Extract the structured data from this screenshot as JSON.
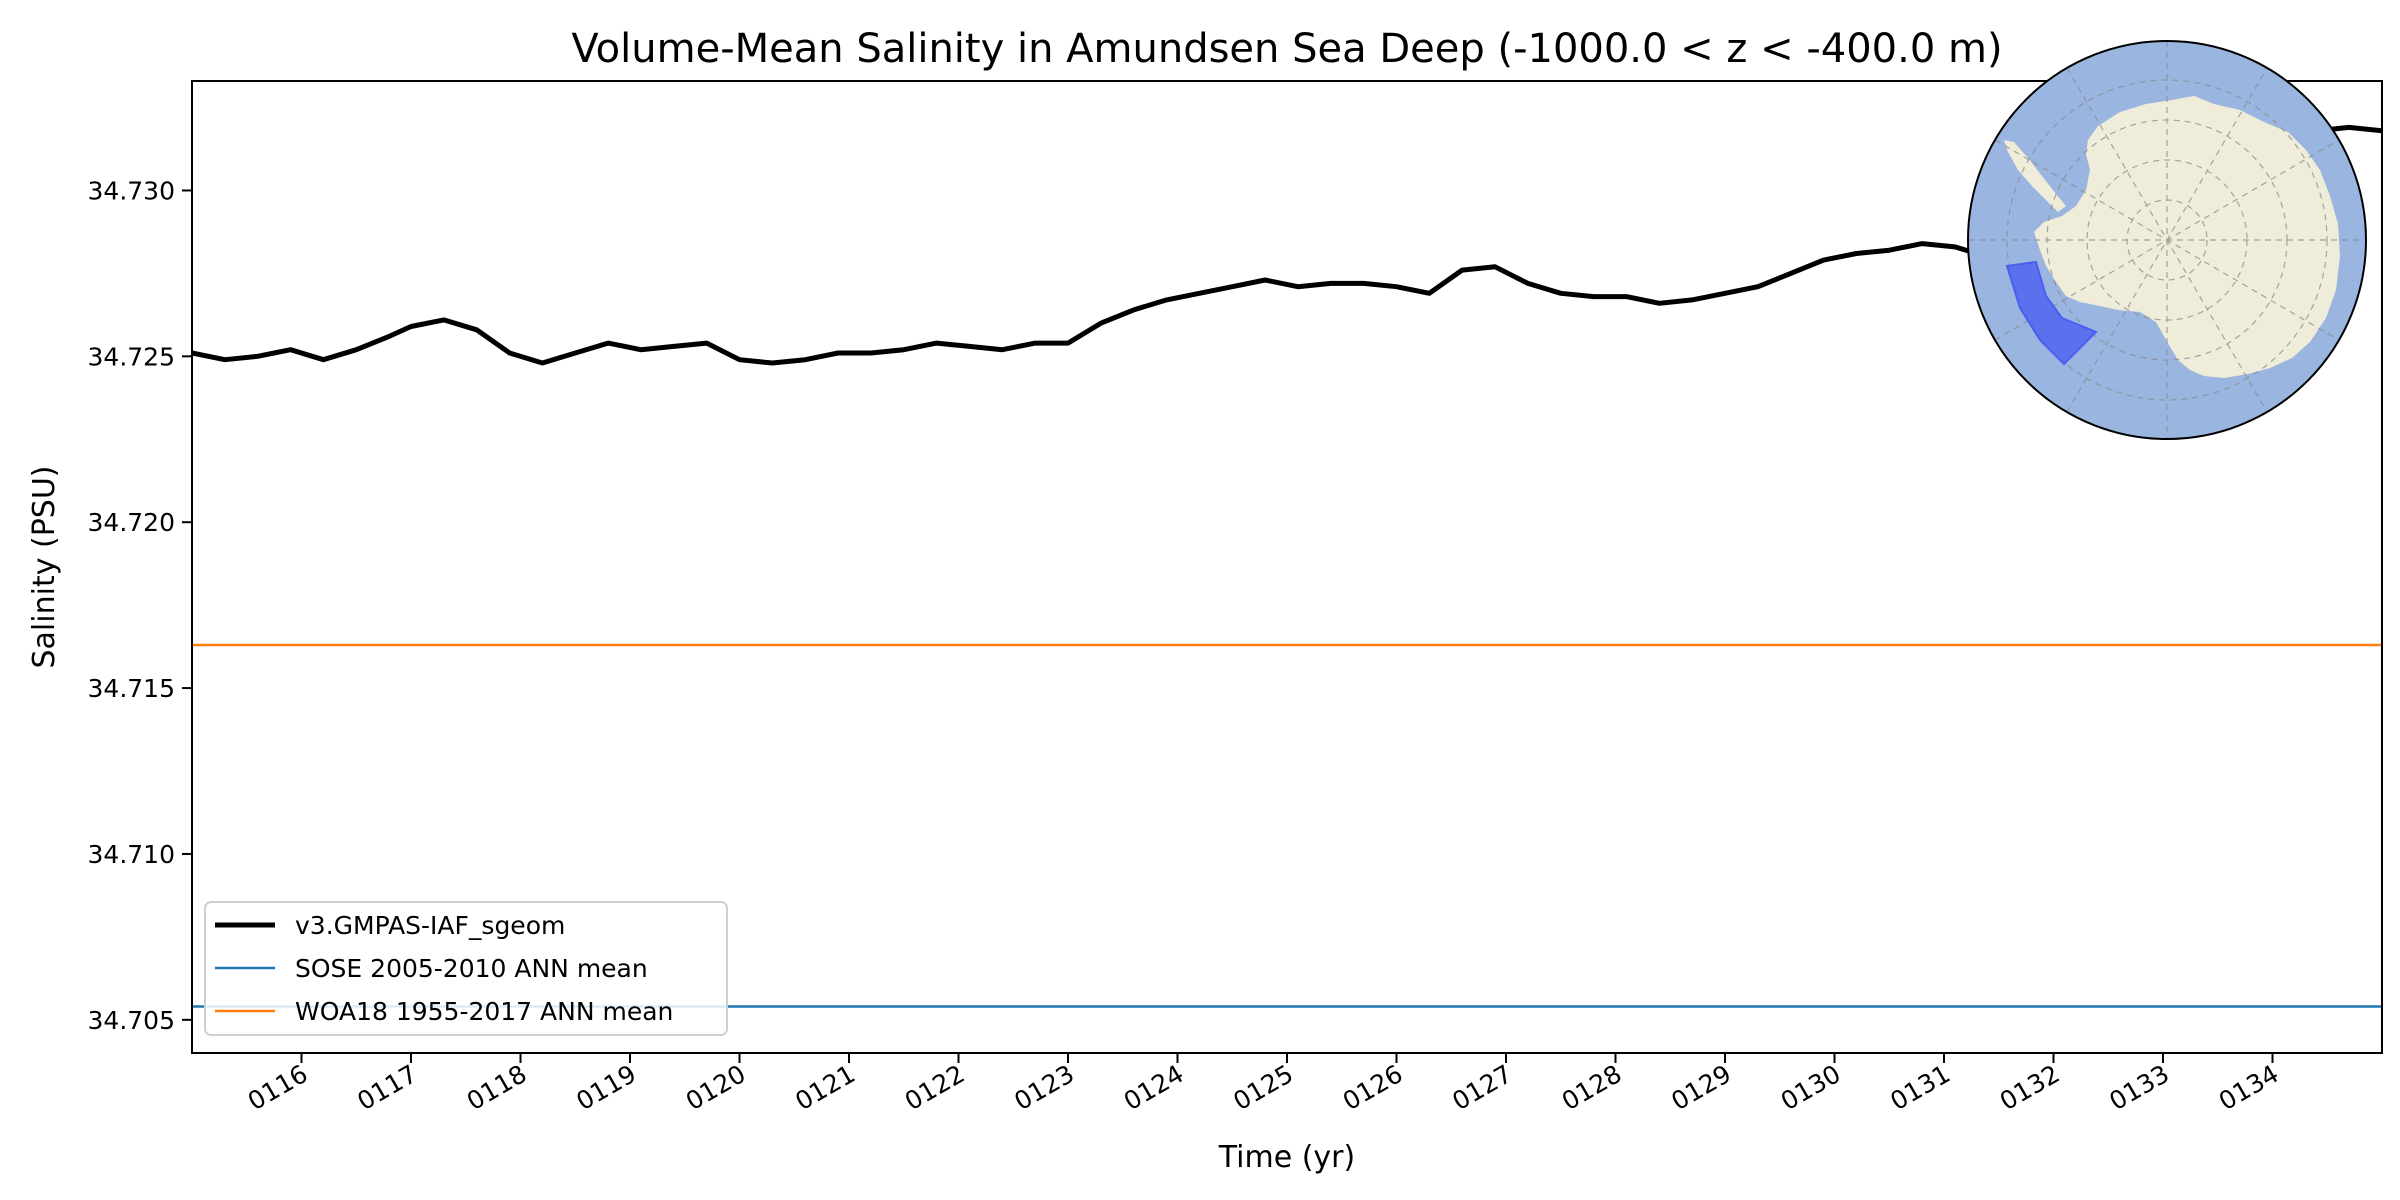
{
  "chart_data": {
    "type": "line",
    "title": "Volume-Mean Salinity in Amundsen Sea Deep (-1000.0 < z < -400.0 m)",
    "xlabel": "Time (yr)",
    "ylabel": "Salinity (PSU)",
    "xlim": [
      115.0,
      135.0
    ],
    "ylim": [
      34.704,
      34.7333
    ],
    "x_ticks": [
      116,
      117,
      118,
      119,
      120,
      121,
      122,
      123,
      124,
      125,
      126,
      127,
      128,
      129,
      130,
      131,
      132,
      133,
      134
    ],
    "x_tick_labels": [
      "0116",
      "0117",
      "0118",
      "0119",
      "0120",
      "0121",
      "0122",
      "0123",
      "0124",
      "0125",
      "0126",
      "0127",
      "0128",
      "0129",
      "0130",
      "0131",
      "0132",
      "0133",
      "0134"
    ],
    "y_ticks": [
      34.705,
      34.71,
      34.715,
      34.72,
      34.725,
      34.73
    ],
    "y_tick_labels": [
      "34.705",
      "34.710",
      "34.715",
      "34.720",
      "34.725",
      "34.730"
    ],
    "grid": false,
    "legend_position": "lower-left",
    "series": [
      {
        "name": "v3.GMPAS-IAF_sgeom",
        "color": "#000000",
        "style": "thick-line",
        "x": [
          115.0,
          115.3,
          115.6,
          115.9,
          116.2,
          116.5,
          116.8,
          117.0,
          117.3,
          117.6,
          117.9,
          118.2,
          118.5,
          118.8,
          119.1,
          119.4,
          119.7,
          120.0,
          120.3,
          120.6,
          120.9,
          121.2,
          121.5,
          121.8,
          122.1,
          122.4,
          122.7,
          123.0,
          123.3,
          123.6,
          123.9,
          124.2,
          124.5,
          124.8,
          125.1,
          125.4,
          125.7,
          126.0,
          126.3,
          126.6,
          126.9,
          127.2,
          127.5,
          127.8,
          128.1,
          128.4,
          128.7,
          129.0,
          129.3,
          129.6,
          129.9,
          130.2,
          130.5,
          130.8,
          131.1,
          131.4,
          131.7,
          132.0,
          132.3,
          132.6,
          132.9,
          133.2,
          133.5,
          133.8,
          134.1,
          134.4,
          134.7,
          135.0
        ],
        "y": [
          34.7251,
          34.7249,
          34.725,
          34.7252,
          34.7249,
          34.7252,
          34.7256,
          34.7259,
          34.7261,
          34.7258,
          34.7251,
          34.7248,
          34.7251,
          34.7254,
          34.7252,
          34.7253,
          34.7254,
          34.7249,
          34.7248,
          34.7249,
          34.7251,
          34.7251,
          34.7252,
          34.7254,
          34.7253,
          34.7252,
          34.7254,
          34.7254,
          34.726,
          34.7264,
          34.7267,
          34.7269,
          34.7271,
          34.7273,
          34.7271,
          34.7272,
          34.7272,
          34.7271,
          34.7269,
          34.7276,
          34.7277,
          34.7272,
          34.7269,
          34.7268,
          34.7268,
          34.7266,
          34.7267,
          34.7269,
          34.7271,
          34.7275,
          34.7279,
          34.7281,
          34.7282,
          34.7284,
          34.7283,
          34.728,
          34.7278,
          34.7281,
          34.7285,
          34.7292,
          34.7301,
          34.7307,
          34.7312,
          34.7315,
          34.7317,
          34.7318,
          34.7319,
          34.7318
        ]
      },
      {
        "name": "SOSE 2005-2010 ANN mean",
        "color": "#1f77b4",
        "style": "horizontal-line",
        "value": 34.7054
      },
      {
        "name": "WOA18 1955-2017 ANN mean",
        "color": "#ff7f0e",
        "style": "horizontal-line",
        "value": 34.7163
      }
    ]
  },
  "inset_map": {
    "ocean_color": "#9ab5e0",
    "land_color": "#efedd9",
    "region_color": "#4a5ff0"
  }
}
